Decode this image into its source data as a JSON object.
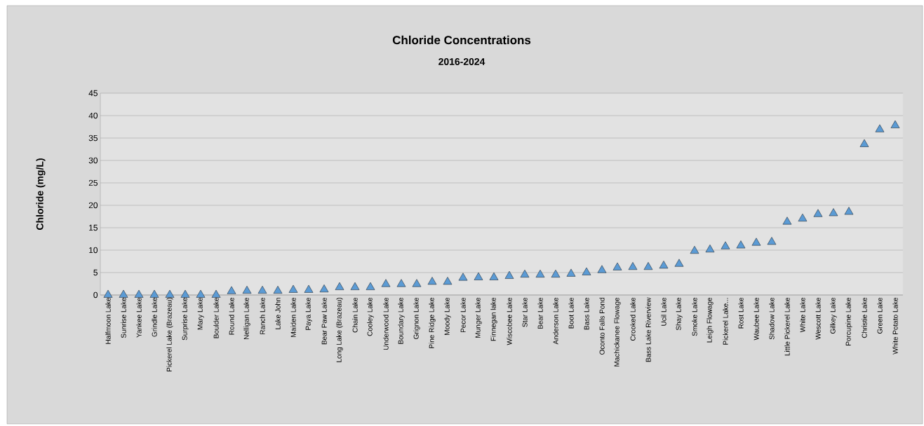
{
  "chart_data": {
    "type": "scatter",
    "title": "Chloride Concentrations",
    "subtitle": "2016-2024",
    "ylabel": "Chloride (mg/L)",
    "categories": [
      "Halfmoon Lake",
      "Sunrise Lake",
      "Yankee Lake",
      "Grindle Lake",
      "Pickerel Lake (Brazeau)",
      "Surprise Lake",
      "Mary Lake",
      "Boulder Lake",
      "Round Lake",
      "Nelligan Lake",
      "Ranch Lake",
      "Lake John",
      "Maiden Lake",
      "Paya Lake",
      "Bear Paw Lake",
      "Long Lake (Brazeau)",
      "Chain Lake",
      "Cooley Lake",
      "Underwood Lake",
      "Boundary Lake",
      "Grignon Lake",
      "Pine Ridge Lake",
      "Moody Lake",
      "Pecor Lake",
      "Munger Lake",
      "Finnegan lake",
      "Wiscobee Lake",
      "Star Lake",
      "Bear Lake",
      "Anderson Lake",
      "Boot Lake",
      "Bass Lake",
      "Oconto Falls Pond",
      "Machickanee Flowage",
      "Crooked Lake",
      "Bass Lake Riverview",
      "Ucil Lake",
      "Shay Lake",
      "Smoke Lake",
      "Leigh Flowage",
      "Pickerel Lake...",
      "Rost Lake",
      "Waubee Lake",
      "Shadow Lake",
      "Little Pickerel Lake",
      "White Lake",
      "Wescott Lake",
      "Gilkey Lake",
      "Porcupine Lake",
      "Christie Lake",
      "Green Lake",
      "White Potato Lake"
    ],
    "series": [
      {
        "color": "#5b9bd5",
        "values": [
          0,
          0,
          0,
          0,
          0,
          0,
          0,
          0,
          0.8,
          0.9,
          0.9,
          0.9,
          1.1,
          1.1,
          1.2,
          1.7,
          1.7,
          1.7,
          2.4,
          2.4,
          2.4,
          2.9,
          2.9,
          3.8,
          3.9,
          3.9,
          4.2,
          4.5,
          4.5,
          4.5,
          4.7,
          5.0,
          5.5,
          6.1,
          6.2,
          6.2,
          6.5,
          6.9,
          9.8,
          10.1,
          10.8,
          11.0,
          11.6,
          11.8,
          16.3,
          17.0,
          18.0,
          18.2,
          18.5,
          33.6,
          36.9,
          37.8
        ]
      }
    ],
    "ylim": [
      0,
      45
    ],
    "yticks": [
      0,
      5,
      10,
      15,
      20,
      25,
      30,
      35,
      40,
      45
    ],
    "grid": "y",
    "marker": "triangle"
  }
}
